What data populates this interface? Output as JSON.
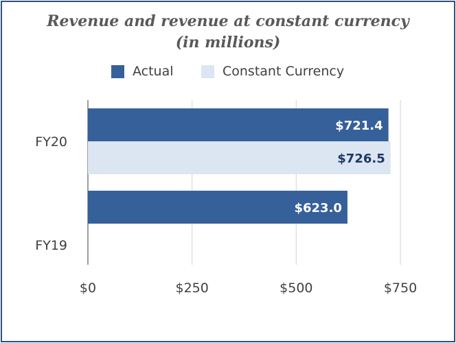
{
  "chart_data": {
    "type": "bar",
    "orientation": "horizontal",
    "title_line1": "Revenue and revenue at constant currency",
    "title_line2": "(in millions)",
    "categories": [
      "FY20",
      "FY19"
    ],
    "series": [
      {
        "name": "Actual",
        "color": "#36609a",
        "label_color": "#ffffff",
        "values": [
          721.4,
          623.0
        ],
        "labels": [
          "$721.4",
          "$623.0"
        ]
      },
      {
        "name": "Constant Currency",
        "color": "#dce6f2",
        "label_color": "#1f3864",
        "values": [
          726.5,
          null
        ],
        "labels": [
          "$726.5",
          ""
        ]
      }
    ],
    "xlim": [
      0,
      750
    ],
    "xticks": [
      0,
      250,
      500,
      750
    ],
    "xtick_labels": [
      "$0",
      "$250",
      "$500",
      "$750"
    ],
    "grid": "vertical",
    "legend_position": "top"
  }
}
